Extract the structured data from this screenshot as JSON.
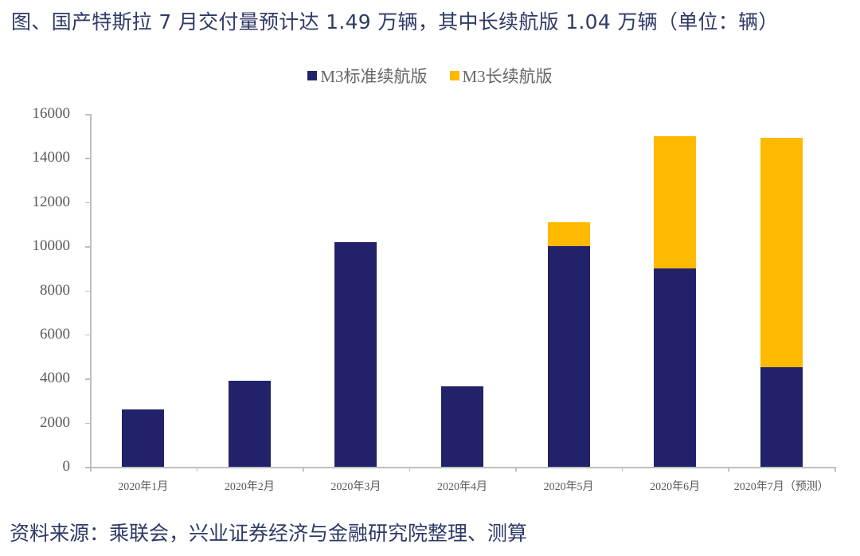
{
  "title": "图、国产特斯拉 7 月交付量预计达 1.49 万辆，其中长续航版 1.04 万辆（单位：辆）",
  "source": "资料来源：乘联会，兴业证券经济与金融研究院整理、测算",
  "legend": [
    {
      "label": "M3标准续航版",
      "color": "#22226b"
    },
    {
      "label": "M3长续航版",
      "color": "#ffb900"
    }
  ],
  "y_ticks": [
    "0",
    "2000",
    "4000",
    "6000",
    "8000",
    "10000",
    "12000",
    "14000",
    "16000"
  ],
  "chart_data": {
    "type": "bar",
    "stacked": true,
    "title": "图、国产特斯拉 7 月交付量预计达 1.49 万辆，其中长续航版 1.04 万辆（单位：辆）",
    "xlabel": "",
    "ylabel": "辆",
    "ylim": [
      0,
      16000
    ],
    "categories": [
      "2020年1月",
      "2020年2月",
      "2020年3月",
      "2020年4月",
      "2020年5月",
      "2020年6月",
      "2020年7月（预测）"
    ],
    "series": [
      {
        "name": "M3标准续航版",
        "color": "#22226b",
        "values": [
          2600,
          3900,
          10200,
          3650,
          10000,
          9000,
          4500
        ]
      },
      {
        "name": "M3长续航版",
        "color": "#ffb900",
        "values": [
          0,
          0,
          0,
          0,
          1100,
          6000,
          10400
        ]
      }
    ],
    "legend_position": "top",
    "grid": false
  }
}
